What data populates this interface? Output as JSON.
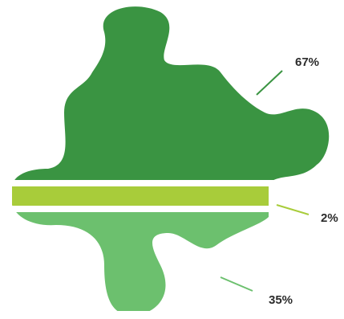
{
  "chart_data": {
    "type": "puzzle",
    "values": [
      67,
      2,
      35
    ],
    "value_labels": [
      "67%",
      "2%",
      "35%"
    ],
    "colors": [
      "#3a9442",
      "#a8cc3a",
      "#6cc06e"
    ]
  }
}
